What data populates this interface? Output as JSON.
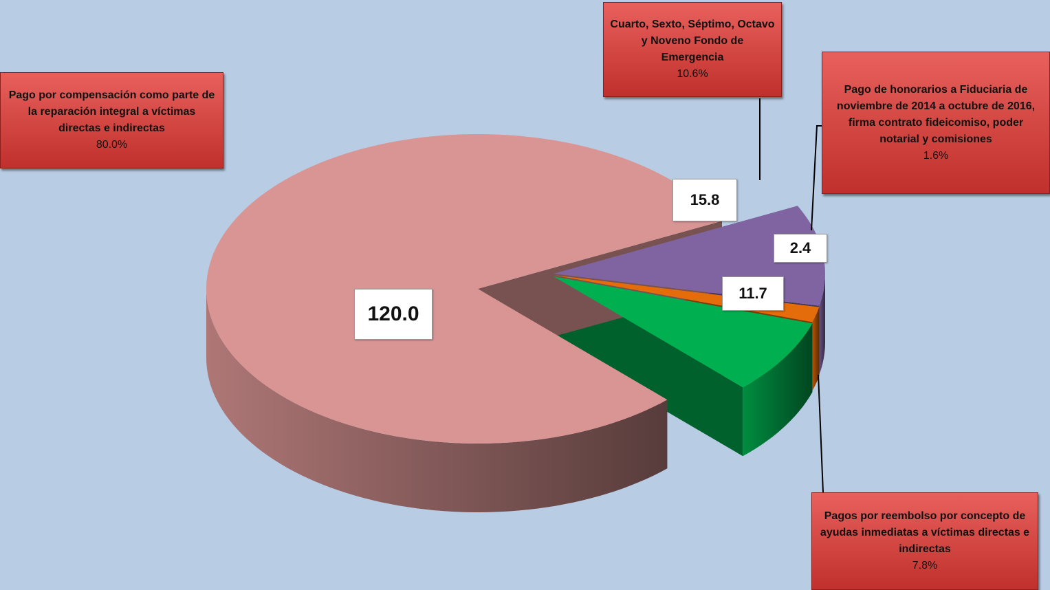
{
  "chart_data": {
    "type": "pie3d",
    "categories": [
      "Pago por compensación como parte de la reparación integral  a víctimas directas e indirectas",
      "Cuarto, Sexto, Séptimo, Octavo y Noveno Fondo de Emergencia",
      "Pago de honorarios a Fiduciaria de noviembre de 2014 a octubre de 2016, firma contrato fideicomiso, poder notarial y comisiones",
      "Pagos por reembolso por concepto de ayudas inmediatas a víctimas directas e indirectas"
    ],
    "values": [
      120.0,
      15.8,
      2.4,
      11.7
    ],
    "value_labels": [
      "120.0",
      "15.8",
      "2.4",
      "11.7"
    ],
    "percentages": [
      80.0,
      10.6,
      1.6,
      7.8
    ],
    "percentage_labels": [
      "80.0%",
      "10.6%",
      "1.6%",
      "7.8%"
    ],
    "colors": [
      "#d99594",
      "#8064a2",
      "#e46c0a",
      "#00b050"
    ]
  }
}
